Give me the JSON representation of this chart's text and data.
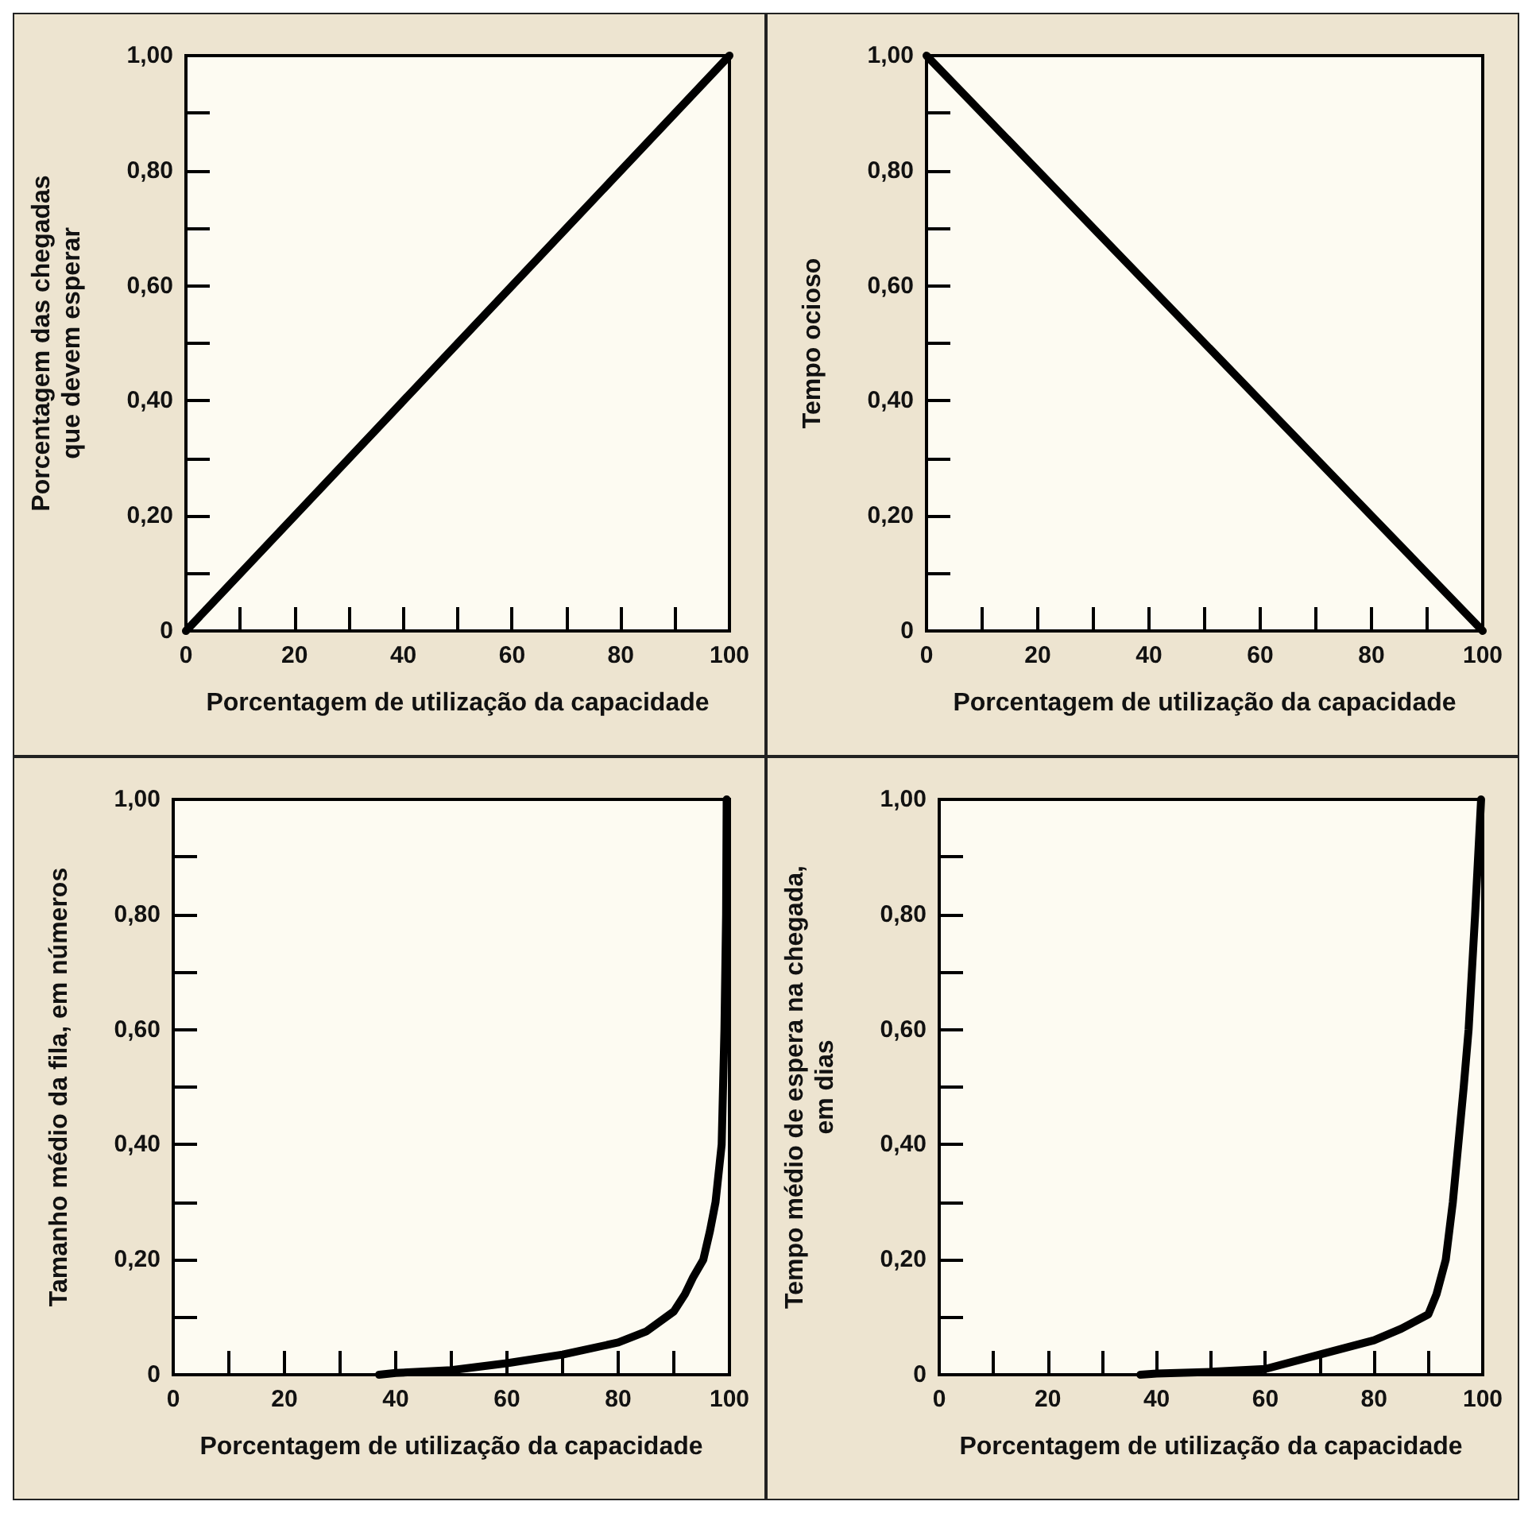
{
  "chart_data": [
    {
      "type": "line",
      "xlabel": "Porcentagem de utilização da capacidade",
      "ylabel": "Porcentagem das chegadas\nque devem esperar",
      "xlim": [
        0,
        100
      ],
      "ylim": [
        0,
        1
      ],
      "xticks": [
        0,
        {
          "value": 10,
          "label": null
        },
        20,
        {
          "value": 30,
          "label": null
        },
        40,
        {
          "value": 50,
          "label": null
        },
        60,
        {
          "value": 70,
          "label": null
        },
        80,
        {
          "value": 90,
          "label": null
        },
        100
      ],
      "yticks": [
        {
          "value": 0,
          "label": "0"
        },
        {
          "value": 0.1,
          "label": null
        },
        {
          "value": 0.2,
          "label": "0,20"
        },
        {
          "value": 0.3,
          "label": null
        },
        {
          "value": 0.4,
          "label": "0,40"
        },
        {
          "value": 0.5,
          "label": null
        },
        {
          "value": 0.6,
          "label": "0,60"
        },
        {
          "value": 0.7,
          "label": null
        },
        {
          "value": 0.8,
          "label": "0,80"
        },
        {
          "value": 0.9,
          "label": null
        },
        {
          "value": 1,
          "label": "1,00"
        }
      ],
      "marker": "none",
      "line_style": "solid",
      "series": [
        {
          "color": "#000000",
          "x": [
            0,
            100
          ],
          "values": [
            0,
            1
          ]
        }
      ]
    },
    {
      "type": "line",
      "xlabel": "Porcentagem de utilização da capacidade",
      "ylabel": "Tempo ocioso",
      "xlim": [
        0,
        100
      ],
      "ylim": [
        0,
        1
      ],
      "xticks": [
        0,
        {
          "value": 10,
          "label": null
        },
        20,
        {
          "value": 30,
          "label": null
        },
        40,
        {
          "value": 50,
          "label": null
        },
        60,
        {
          "value": 70,
          "label": null
        },
        80,
        {
          "value": 90,
          "label": null
        },
        100
      ],
      "yticks": [
        {
          "value": 0,
          "label": "0"
        },
        {
          "value": 0.1,
          "label": null
        },
        {
          "value": 0.2,
          "label": "0,20"
        },
        {
          "value": 0.3,
          "label": null
        },
        {
          "value": 0.4,
          "label": "0,40"
        },
        {
          "value": 0.5,
          "label": null
        },
        {
          "value": 0.6,
          "label": "0,60"
        },
        {
          "value": 0.7,
          "label": null
        },
        {
          "value": 0.8,
          "label": "0,80"
        },
        {
          "value": 0.9,
          "label": null
        },
        {
          "value": 1,
          "label": "1,00"
        }
      ],
      "marker": "none",
      "line_style": "solid",
      "series": [
        {
          "color": "#000000",
          "x": [
            0,
            100
          ],
          "values": [
            1,
            0
          ]
        }
      ]
    },
    {
      "type": "line",
      "xlabel": "Porcentagem de utilização da capacidade",
      "ylabel": "Tamanho médio da fila, em números",
      "xlim": [
        0,
        100
      ],
      "ylim": [
        0,
        1
      ],
      "xticks": [
        0,
        {
          "value": 10,
          "label": null
        },
        20,
        {
          "value": 30,
          "label": null
        },
        40,
        {
          "value": 50,
          "label": null
        },
        60,
        {
          "value": 70,
          "label": null
        },
        80,
        {
          "value": 90,
          "label": null
        },
        100
      ],
      "yticks": [
        {
          "value": 0,
          "label": "0"
        },
        {
          "value": 0.1,
          "label": null
        },
        {
          "value": 0.2,
          "label": "0,20"
        },
        {
          "value": 0.3,
          "label": null
        },
        {
          "value": 0.4,
          "label": "0,40"
        },
        {
          "value": 0.5,
          "label": null
        },
        {
          "value": 0.6,
          "label": "0,60"
        },
        {
          "value": 0.7,
          "label": null
        },
        {
          "value": 0.8,
          "label": "0,80"
        },
        {
          "value": 0.9,
          "label": null
        },
        {
          "value": 1,
          "label": "1,00"
        }
      ],
      "marker": "none",
      "line_style": "solid",
      "series": [
        {
          "color": "#000000",
          "x": [
            37,
            40,
            50,
            60,
            70,
            80,
            85,
            90,
            92,
            93.5,
            95.3,
            96.5,
            97.5,
            98.6,
            99.1,
            99.4,
            99.5
          ],
          "values": [
            0,
            0.003,
            0.008,
            0.02,
            0.035,
            0.056,
            0.075,
            0.11,
            0.14,
            0.17,
            0.2,
            0.25,
            0.3,
            0.4,
            0.6,
            0.8,
            1
          ]
        }
      ]
    },
    {
      "type": "line",
      "xlabel": "Porcentagem de utilização da capacidade",
      "ylabel": "Tempo médio de espera na chegada,\nem dias",
      "xlim": [
        0,
        100
      ],
      "ylim": [
        0,
        1
      ],
      "xticks": [
        0,
        {
          "value": 10,
          "label": null
        },
        20,
        {
          "value": 30,
          "label": null
        },
        40,
        {
          "value": 50,
          "label": null
        },
        60,
        {
          "value": 70,
          "label": null
        },
        80,
        {
          "value": 90,
          "label": null
        },
        100
      ],
      "yticks": [
        {
          "value": 0,
          "label": "0"
        },
        {
          "value": 0.1,
          "label": null
        },
        {
          "value": 0.2,
          "label": "0,20"
        },
        {
          "value": 0.3,
          "label": null
        },
        {
          "value": 0.4,
          "label": "0,40"
        },
        {
          "value": 0.5,
          "label": null
        },
        {
          "value": 0.6,
          "label": "0,60"
        },
        {
          "value": 0.7,
          "label": null
        },
        {
          "value": 0.8,
          "label": "0,80"
        },
        {
          "value": 0.9,
          "label": null
        },
        {
          "value": 1,
          "label": "1,00"
        }
      ],
      "marker": "none",
      "line_style": "solid",
      "series": [
        {
          "color": "#000000",
          "x": [
            37,
            40,
            50,
            60,
            70,
            80,
            85,
            90,
            91.5,
            93.2,
            94.5,
            95.5,
            96.5,
            97.4,
            98.6,
            99.7
          ],
          "values": [
            0,
            0.002,
            0.005,
            0.01,
            0.035,
            0.06,
            0.08,
            0.105,
            0.14,
            0.2,
            0.3,
            0.4,
            0.5,
            0.6,
            0.8,
            1
          ]
        }
      ]
    }
  ]
}
